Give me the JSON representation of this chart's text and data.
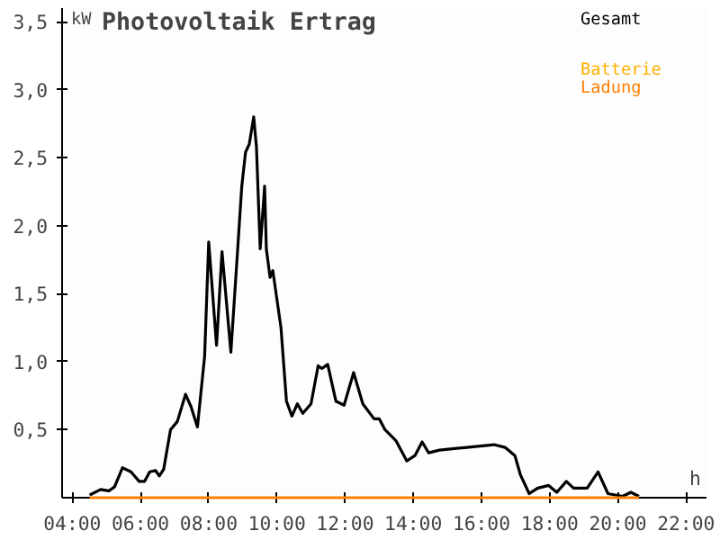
{
  "chart_data": {
    "type": "line",
    "title": "Photovoltaik Ertrag",
    "xlabel": "h",
    "ylabel": "kW",
    "xlim": [
      3.7,
      22.6
    ],
    "ylim": [
      0,
      3.6
    ],
    "xticks": [
      {
        "value": 4,
        "label": "04:00"
      },
      {
        "value": 6,
        "label": "06:00"
      },
      {
        "value": 8,
        "label": "08:00"
      },
      {
        "value": 10,
        "label": "10:00"
      },
      {
        "value": 12,
        "label": "12:00"
      },
      {
        "value": 14,
        "label": "14:00"
      },
      {
        "value": 16,
        "label": "16:00"
      },
      {
        "value": 18,
        "label": "18:00"
      },
      {
        "value": 20,
        "label": "20:00"
      },
      {
        "value": 22,
        "label": "22:00"
      }
    ],
    "yticks": [
      {
        "value": 0.5,
        "label": "0,5"
      },
      {
        "value": 1.0,
        "label": "1,0"
      },
      {
        "value": 1.5,
        "label": "1,5"
      },
      {
        "value": 2.0,
        "label": "2,0"
      },
      {
        "value": 2.5,
        "label": "2,5"
      },
      {
        "value": 3.0,
        "label": "3,0"
      },
      {
        "value": 3.5,
        "label": "3,5"
      }
    ],
    "grid": false,
    "legend": "top right",
    "series": [
      {
        "name": "Gesamt",
        "color": "#000000",
        "x": [
          4.51,
          4.83,
          5.07,
          5.24,
          5.47,
          5.72,
          5.96,
          6.12,
          6.27,
          6.44,
          6.55,
          6.68,
          6.88,
          7.08,
          7.32,
          7.48,
          7.67,
          7.88,
          8.0,
          8.23,
          8.39,
          8.65,
          8.84,
          8.97,
          9.08,
          9.19,
          9.32,
          9.4,
          9.51,
          9.64,
          9.69,
          9.8,
          9.88,
          10.12,
          10.28,
          10.44,
          10.6,
          10.76,
          11.0,
          11.21,
          11.32,
          11.49,
          11.73,
          11.97,
          12.25,
          12.52,
          12.85,
          13.0,
          13.17,
          13.49,
          13.81,
          14.05,
          14.26,
          14.45,
          14.77,
          15.57,
          16.37,
          16.69,
          16.98,
          17.14,
          17.4,
          17.65,
          17.97,
          18.21,
          18.49,
          18.7,
          19.1,
          19.42,
          19.71,
          20.14,
          20.38,
          20.62
        ],
        "values": [
          0.02,
          0.06,
          0.05,
          0.08,
          0.22,
          0.19,
          0.12,
          0.12,
          0.19,
          0.2,
          0.16,
          0.21,
          0.5,
          0.56,
          0.76,
          0.67,
          0.52,
          1.04,
          1.88,
          1.12,
          1.81,
          1.07,
          1.79,
          2.29,
          2.54,
          2.6,
          2.8,
          2.58,
          1.83,
          2.29,
          1.83,
          1.62,
          1.67,
          1.25,
          0.71,
          0.6,
          0.69,
          0.62,
          0.69,
          0.97,
          0.95,
          0.98,
          0.71,
          0.68,
          0.92,
          0.69,
          0.58,
          0.58,
          0.5,
          0.42,
          0.27,
          0.31,
          0.41,
          0.33,
          0.35,
          0.37,
          0.39,
          0.37,
          0.31,
          0.17,
          0.03,
          0.07,
          0.09,
          0.04,
          0.12,
          0.07,
          0.07,
          0.19,
          0.03,
          0.01,
          0.04,
          0.01
        ]
      },
      {
        "name": "Batterie",
        "color": "#ffb000"
      },
      {
        "name": "Ladung",
        "color": "#ff8000",
        "x": [
          4.51,
          20.62
        ],
        "values": [
          0,
          0
        ]
      }
    ]
  }
}
